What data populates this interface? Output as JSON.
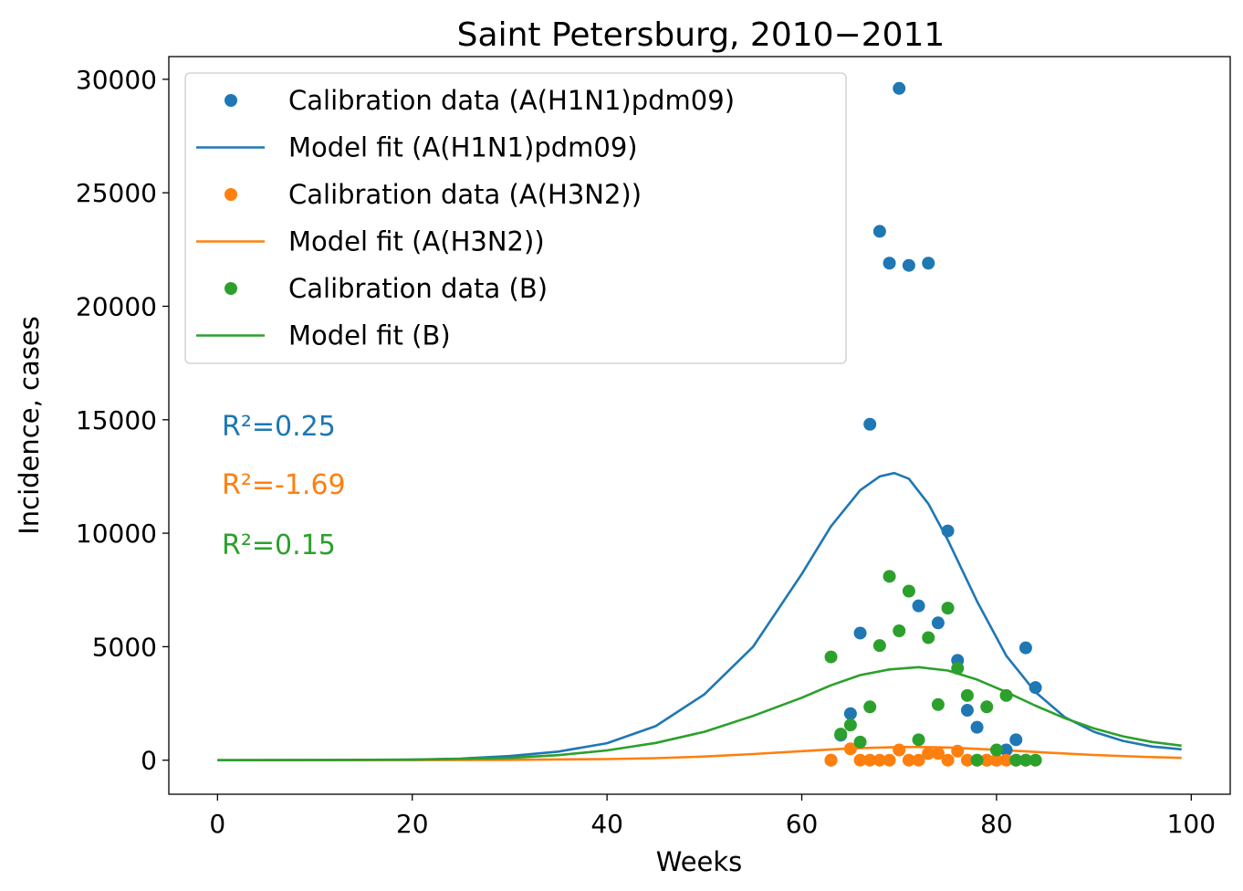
{
  "chart_data": {
    "type": "scatter",
    "title": "Saint Petersburg, 2010−2011",
    "xlabel": "Weeks",
    "ylabel": "Incidence, cases",
    "xlim": [
      -5,
      104
    ],
    "ylim": [
      -1500,
      31000
    ],
    "xticks": [
      0,
      20,
      40,
      60,
      80,
      100
    ],
    "yticks": [
      0,
      5000,
      10000,
      15000,
      20000,
      25000,
      30000
    ],
    "legend_position": "top-left",
    "series": [
      {
        "name": "Calibration data (A(H1N1)pdm09)",
        "kind": "points",
        "color": "#1f77b4",
        "x": [
          63,
          64,
          65,
          66,
          67,
          68,
          69,
          70,
          71,
          72,
          73,
          74,
          75,
          76,
          77,
          78,
          79,
          80,
          81,
          82,
          83,
          84
        ],
        "y": [
          0,
          1100,
          2050,
          5600,
          14800,
          23300,
          21900,
          29600,
          21800,
          6800,
          21900,
          6050,
          10100,
          4400,
          2200,
          1450,
          0,
          0,
          450,
          900,
          4950,
          3200
        ]
      },
      {
        "name": "Model fit (A(H1N1)pdm09)",
        "kind": "line",
        "color": "#1f77b4",
        "x": [
          0,
          10,
          20,
          25,
          30,
          35,
          40,
          45,
          50,
          55,
          60,
          63,
          66,
          68,
          69.5,
          71,
          73,
          75,
          78,
          81,
          84,
          87,
          90,
          93,
          96,
          99
        ],
        "y": [
          0,
          5,
          30,
          70,
          180,
          380,
          750,
          1500,
          2900,
          5000,
          8200,
          10300,
          11900,
          12500,
          12650,
          12400,
          11300,
          9700,
          7000,
          4600,
          3000,
          1900,
          1250,
          850,
          600,
          480
        ]
      },
      {
        "name": "Calibration data (A(H3N2))",
        "kind": "points",
        "color": "#ff7f0e",
        "x": [
          63,
          65,
          66,
          67,
          68,
          69,
          70,
          71,
          72,
          73,
          74,
          75,
          76,
          77,
          78,
          79,
          80,
          81,
          82,
          83,
          84
        ],
        "y": [
          0,
          500,
          0,
          0,
          0,
          0,
          450,
          0,
          0,
          300,
          300,
          0,
          400,
          0,
          0,
          0,
          0,
          0,
          0,
          0,
          0
        ]
      },
      {
        "name": "Model fit (A(H3N2))",
        "kind": "line",
        "color": "#ff7f0e",
        "x": [
          0,
          20,
          30,
          40,
          45,
          50,
          55,
          60,
          65,
          70,
          72,
          75,
          80,
          85,
          90,
          95,
          99
        ],
        "y": [
          0,
          5,
          15,
          50,
          90,
          160,
          270,
          400,
          520,
          580,
          580,
          560,
          460,
          340,
          230,
          150,
          100
        ]
      },
      {
        "name": "Calibration data (B)",
        "kind": "points",
        "color": "#2ca02c",
        "x": [
          63,
          64,
          65,
          66,
          67,
          68,
          69,
          70,
          71,
          72,
          73,
          74,
          75,
          76,
          77,
          78,
          79,
          80,
          81,
          82,
          83,
          84
        ],
        "y": [
          4550,
          1150,
          1550,
          800,
          2350,
          5050,
          8100,
          5700,
          7450,
          900,
          5400,
          2450,
          6700,
          4050,
          2850,
          0,
          2350,
          450,
          2850,
          0,
          0,
          0
        ]
      },
      {
        "name": "Model fit (B)",
        "kind": "line",
        "color": "#2ca02c",
        "x": [
          0,
          10,
          20,
          30,
          35,
          40,
          45,
          50,
          55,
          60,
          63,
          66,
          69,
          72,
          75,
          78,
          81,
          84,
          87,
          90,
          93,
          96,
          99
        ],
        "y": [
          0,
          3,
          20,
          100,
          220,
          430,
          760,
          1250,
          1950,
          2750,
          3300,
          3750,
          4000,
          4100,
          3950,
          3550,
          3000,
          2400,
          1850,
          1400,
          1050,
          800,
          640
        ]
      }
    ],
    "annotations": [
      {
        "text": "R²=0.25",
        "color": "#1f77b4"
      },
      {
        "text": "R²=-1.69",
        "color": "#ff7f0e"
      },
      {
        "text": "R²=0.15",
        "color": "#2ca02c"
      }
    ]
  }
}
